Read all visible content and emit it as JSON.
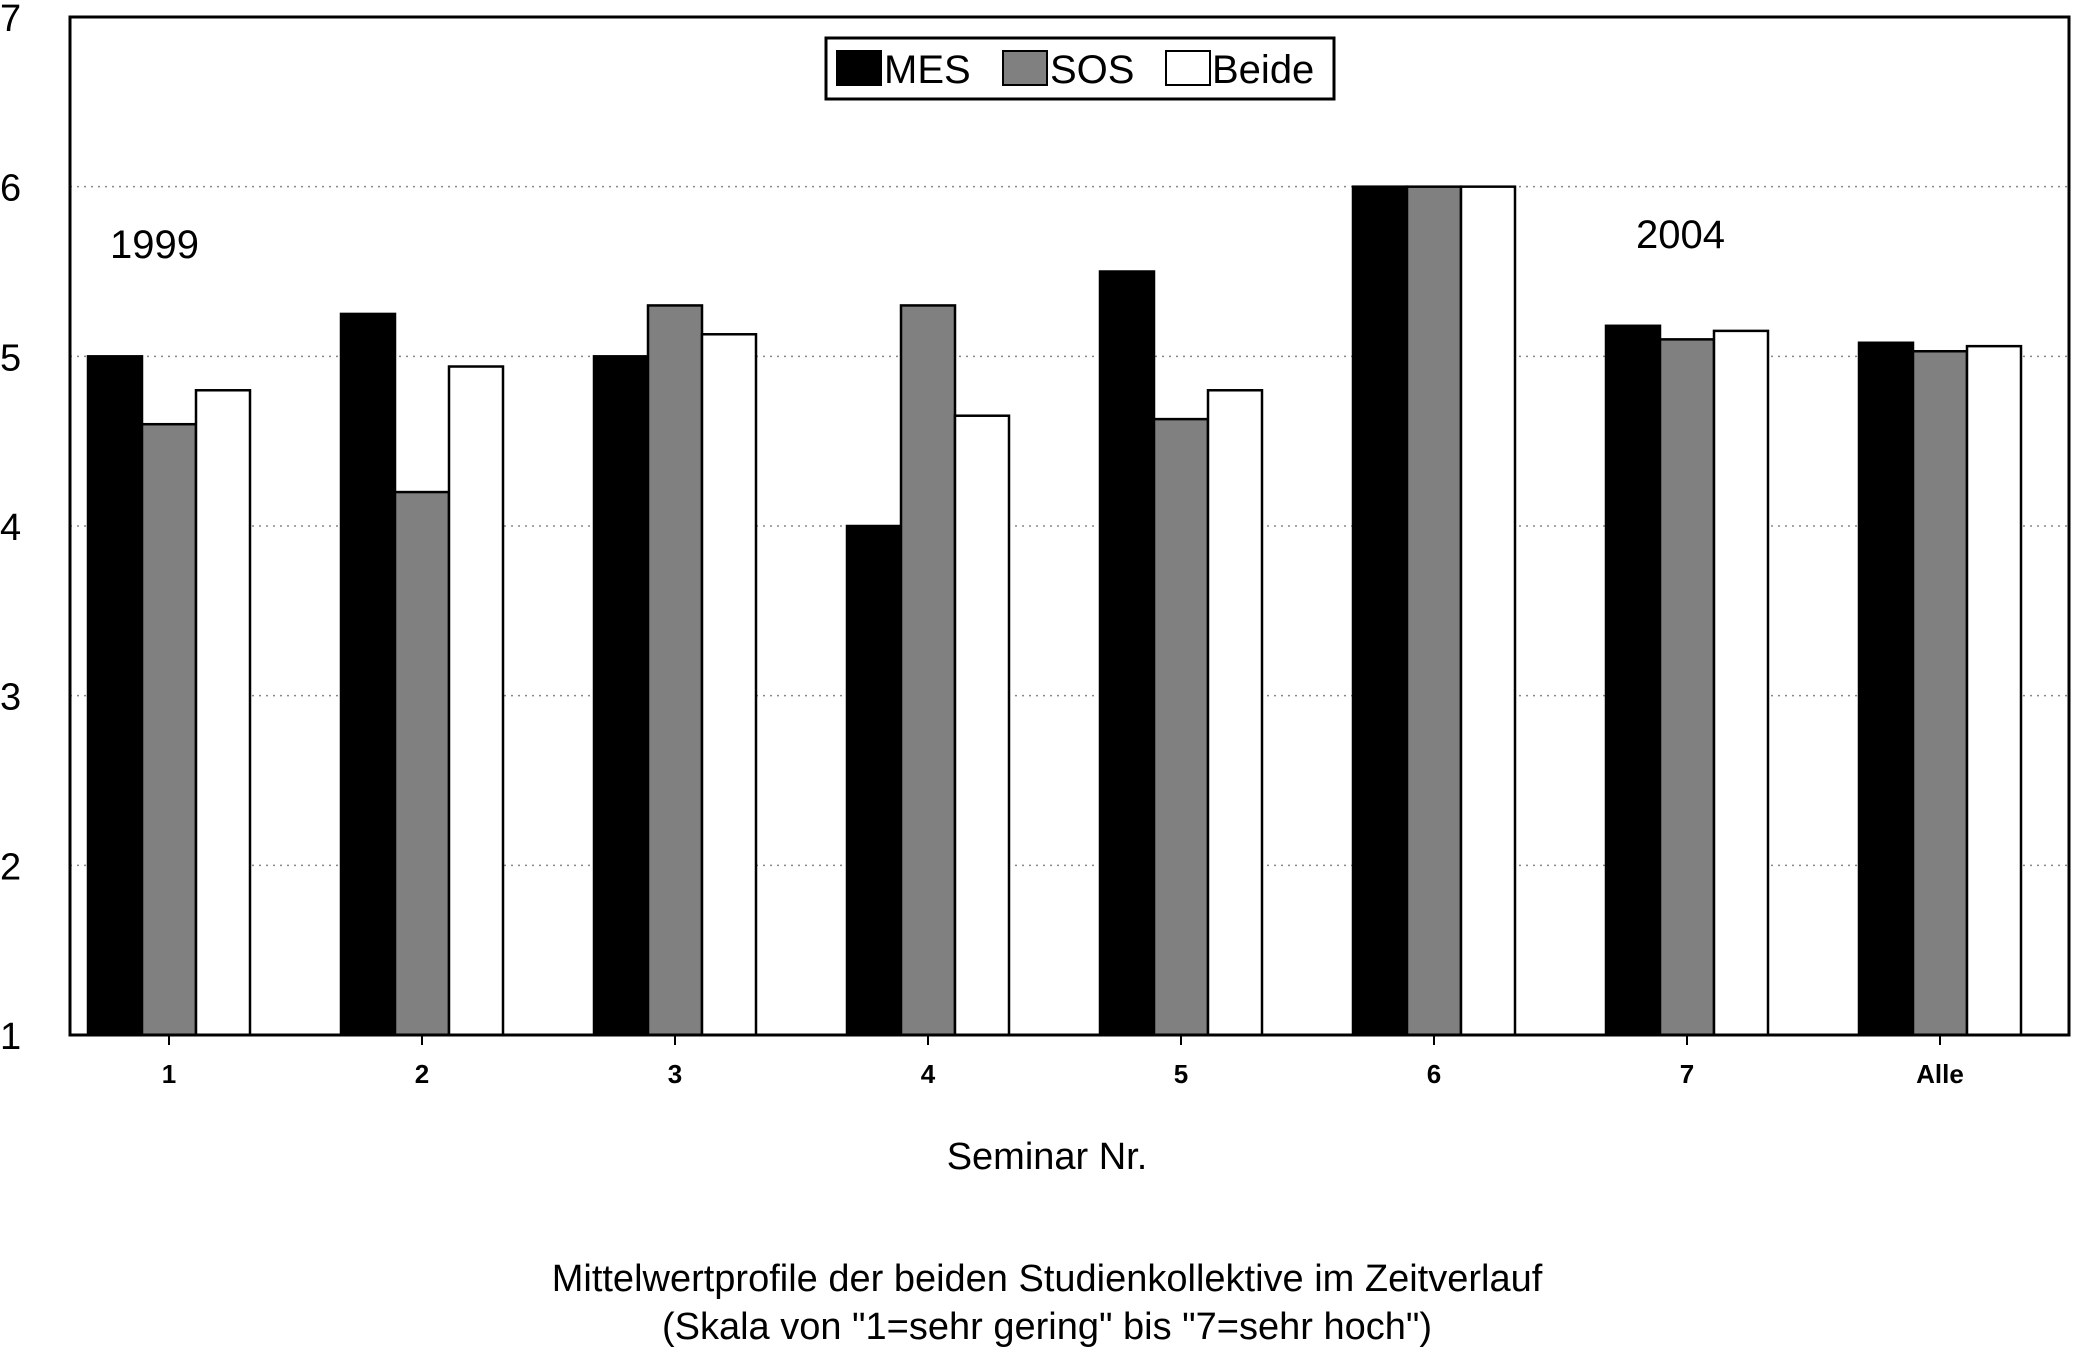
{
  "chart_data": {
    "type": "bar",
    "title": "Mittelwertprofile der beiden Studienkollektive im Zeitverlauf",
    "subtitle": "(Skala von \"1=sehr gering\" bis \"7=sehr hoch\")",
    "xlabel": "Seminar Nr.",
    "ylabel": "",
    "ylim": [
      1,
      7
    ],
    "yticks": [
      "1",
      "2",
      "3",
      "4",
      "5",
      "6",
      "7"
    ],
    "grid": "horizontal dotted",
    "legend_position": "top-center",
    "categories": [
      "1",
      "2",
      "3",
      "4",
      "5",
      "6",
      "7",
      "Alle"
    ],
    "series": [
      {
        "name": "MES",
        "color": "#000000",
        "values": [
          5.0,
          5.25,
          5.0,
          4.0,
          5.5,
          6.0,
          5.18,
          5.08
        ]
      },
      {
        "name": "SOS",
        "color": "#808080",
        "values": [
          4.6,
          4.2,
          5.3,
          5.3,
          4.63,
          6.0,
          5.1,
          5.03
        ]
      },
      {
        "name": "Beide",
        "color": "#ffffff",
        "values": [
          4.8,
          4.94,
          5.13,
          4.65,
          4.8,
          6.0,
          5.15,
          5.06
        ]
      }
    ],
    "annotations": [
      "1999",
      "2004"
    ]
  }
}
